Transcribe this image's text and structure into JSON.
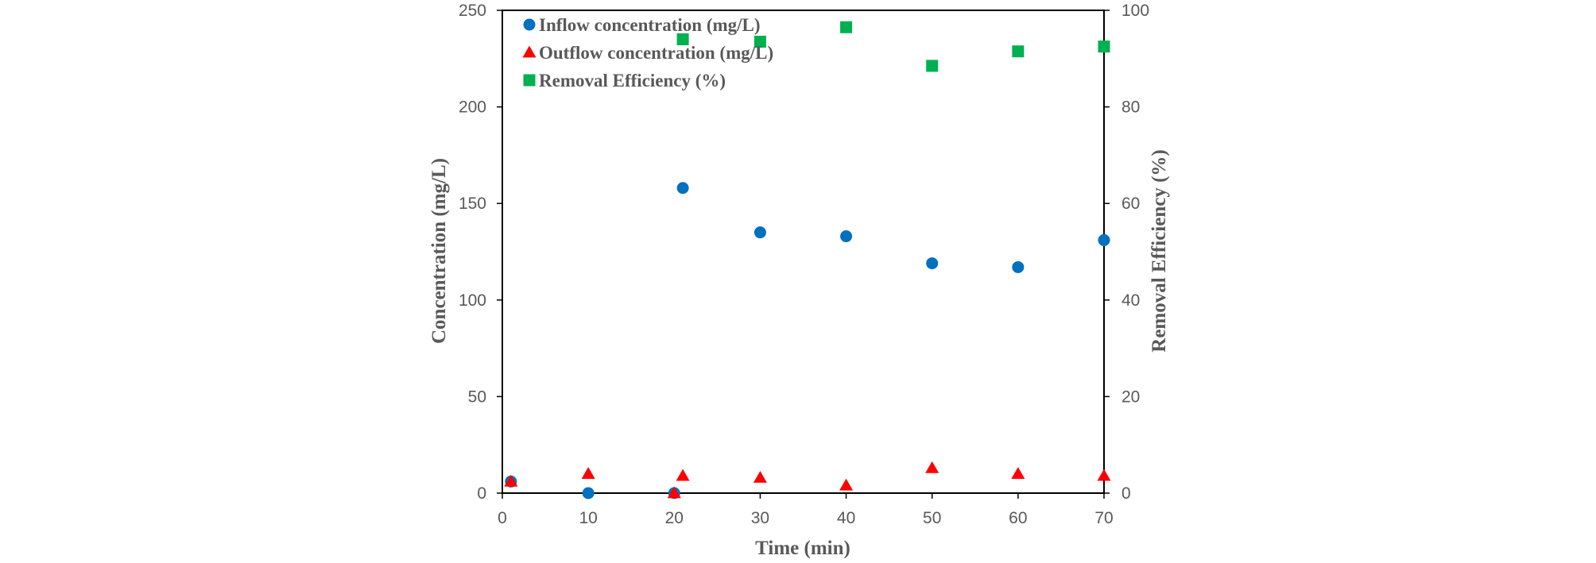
{
  "chart_data": {
    "type": "scatter",
    "x_axis": {
      "label": "Time (min)",
      "range": [
        0,
        70
      ],
      "ticks": [
        0,
        10,
        20,
        30,
        40,
        50,
        60,
        70
      ]
    },
    "y_axis_left": {
      "label": "Concentration (mg/L)",
      "range": [
        0,
        250
      ],
      "ticks": [
        0,
        50,
        100,
        150,
        200,
        250
      ]
    },
    "y_axis_right": {
      "label": "Removal Efficiency (%)",
      "range": [
        0,
        100
      ],
      "ticks": [
        0,
        20,
        40,
        60,
        80,
        100
      ]
    },
    "grid": false,
    "legend_position": "top-left inside",
    "series": [
      {
        "name": "Inflow concentration (mg/L)",
        "marker": "circle",
        "color": "#0070C0",
        "axis": "left",
        "points": [
          {
            "x": 1,
            "y": 6
          },
          {
            "x": 10,
            "y": 0
          },
          {
            "x": 20,
            "y": 0
          },
          {
            "x": 21,
            "y": 158
          },
          {
            "x": 30,
            "y": 135
          },
          {
            "x": 40,
            "y": 133
          },
          {
            "x": 50,
            "y": 119
          },
          {
            "x": 60,
            "y": 117
          },
          {
            "x": 70,
            "y": 131
          }
        ]
      },
      {
        "name": "Outflow concentration (mg/L)",
        "marker": "triangle",
        "color": "#FF0000",
        "axis": "left",
        "points": [
          {
            "x": 1,
            "y": 6
          },
          {
            "x": 10,
            "y": 10
          },
          {
            "x": 20,
            "y": 0
          },
          {
            "x": 21,
            "y": 9
          },
          {
            "x": 30,
            "y": 8
          },
          {
            "x": 40,
            "y": 4
          },
          {
            "x": 50,
            "y": 13
          },
          {
            "x": 60,
            "y": 10
          },
          {
            "x": 70,
            "y": 9
          }
        ]
      },
      {
        "name": "Removal Efficiency (%)",
        "marker": "square",
        "color": "#00B050",
        "axis": "right",
        "points": [
          {
            "x": 21,
            "y": 94
          },
          {
            "x": 30,
            "y": 93.5
          },
          {
            "x": 40,
            "y": 96.5
          },
          {
            "x": 50,
            "y": 88.5
          },
          {
            "x": 60,
            "y": 91.5
          },
          {
            "x": 70,
            "y": 92.5
          }
        ]
      }
    ]
  }
}
